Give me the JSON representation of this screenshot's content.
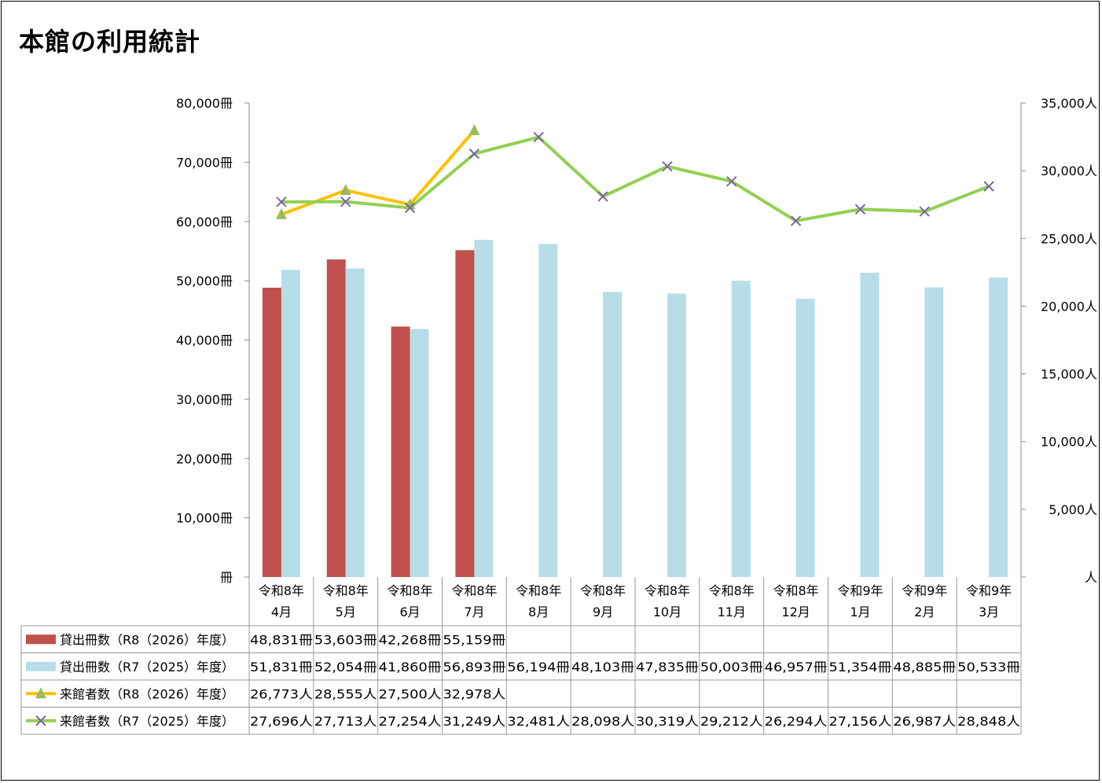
{
  "chart_data": {
    "type": "bar",
    "title": "本館の利用統計",
    "categories": [
      [
        "令和8年",
        "4月"
      ],
      [
        "令和8年",
        "5月"
      ],
      [
        "令和8年",
        "6月"
      ],
      [
        "令和8年",
        "7月"
      ],
      [
        "令和8年",
        "8月"
      ],
      [
        "令和8年",
        "9月"
      ],
      [
        "令和8年",
        "10月"
      ],
      [
        "令和8年",
        "11月"
      ],
      [
        "令和8年",
        "12月"
      ],
      [
        "令和9年",
        "1月"
      ],
      [
        "令和9年",
        "2月"
      ],
      [
        "令和9年",
        "3月"
      ]
    ],
    "y_left": {
      "ylim": [
        0,
        80000
      ],
      "ticks": [
        "冊",
        "10,000冊",
        "20,000冊",
        "30,000冊",
        "40,000冊",
        "50,000冊",
        "60,000冊",
        "70,000冊",
        "80,000冊"
      ]
    },
    "y_right": {
      "ylim": [
        0,
        35000
      ],
      "ticks": [
        "人",
        "5,000人",
        "10,000人",
        "15,000人",
        "20,000人",
        "25,000人",
        "30,000人",
        "35,000人"
      ]
    },
    "series": [
      {
        "name": "貸出冊数（R8（2026）年度）",
        "kind": "bar",
        "axis": "left",
        "color": "#C0504D",
        "values": [
          48831,
          53603,
          42268,
          55159,
          null,
          null,
          null,
          null,
          null,
          null,
          null,
          null
        ],
        "labels": [
          "48,831冊",
          "53,603冊",
          "42,268冊",
          "55,159冊",
          "",
          "",
          "",
          "",
          "",
          "",
          "",
          ""
        ]
      },
      {
        "name": "貸出冊数（R7（2025）年度）",
        "kind": "bar",
        "axis": "left",
        "color": "#B7DDE8",
        "values": [
          51831,
          52054,
          41860,
          56893,
          56194,
          48103,
          47835,
          50003,
          46957,
          51354,
          48885,
          50533
        ],
        "labels": [
          "51,831冊",
          "52,054冊",
          "41,860冊",
          "56,893冊",
          "56,194冊",
          "48,103冊",
          "47,835冊",
          "50,003冊",
          "46,957冊",
          "51,354冊",
          "48,885冊",
          "50,533冊"
        ]
      },
      {
        "name": "来館者数（R8（2026）年度）",
        "kind": "line",
        "axis": "right",
        "color": "#FFC000",
        "marker": "triangle",
        "marker_color": "#9BBB59",
        "values": [
          26773,
          28555,
          27500,
          32978,
          null,
          null,
          null,
          null,
          null,
          null,
          null,
          null
        ],
        "labels": [
          "26,773人",
          "28,555人",
          "27,500人",
          "32,978人",
          "",
          "",
          "",
          "",
          "",
          "",
          "",
          ""
        ]
      },
      {
        "name": "来館者数（R7（2025）年度）",
        "kind": "line",
        "axis": "right",
        "color": "#92D050",
        "marker": "x",
        "marker_color": "#8064A2",
        "values": [
          27696,
          27713,
          27254,
          31249,
          32481,
          28098,
          30319,
          29212,
          26294,
          27156,
          26987,
          28848
        ],
        "labels": [
          "27,696人",
          "27,713人",
          "27,254人",
          "31,249人",
          "32,481人",
          "28,098人",
          "30,319人",
          "29,212人",
          "26,294人",
          "27,156人",
          "26,987人",
          "28,848人"
        ]
      }
    ],
    "legend": "data-table-bottom"
  }
}
